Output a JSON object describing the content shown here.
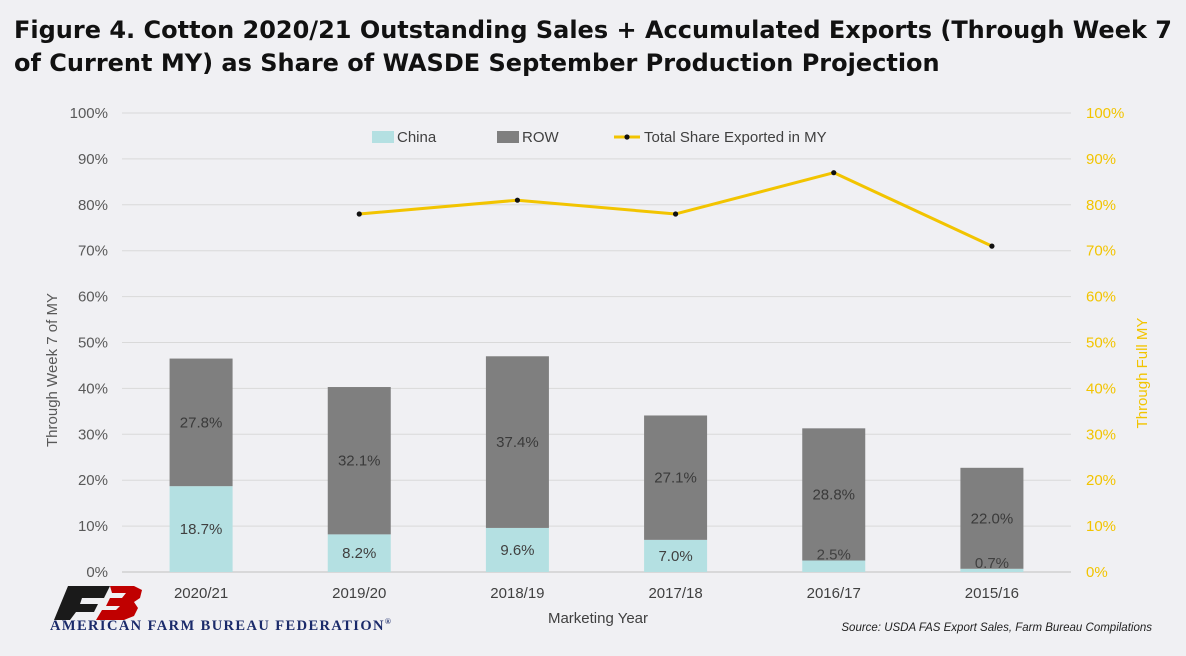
{
  "title": "Figure 4. Cotton 2020/21 Outstanding Sales + Accumulated Exports (Through Week 7 of Current MY) as Share of WASDE September Production Projection",
  "source": "Source: USDA FAS Export Sales, Farm Bureau Compilations",
  "logo_text": "AMERICAN FARM BUREAU FEDERATION",
  "logo_mark": "®",
  "colors": {
    "china": "#b4e0e2",
    "row": "#7f7f7f",
    "line": "#f2c400",
    "marker": "#111111"
  },
  "chart_data": {
    "type": "bar",
    "stacked": true,
    "categories": [
      "2020/21",
      "2019/20",
      "2018/19",
      "2017/18",
      "2016/17",
      "2015/16"
    ],
    "series": [
      {
        "name": "China",
        "values": [
          18.7,
          8.2,
          9.6,
          7.0,
          2.5,
          0.7
        ],
        "labels": [
          "18.7%",
          "8.2%",
          "9.6%",
          "7.0%",
          "2.5%",
          "0.7%"
        ]
      },
      {
        "name": "ROW",
        "values": [
          27.8,
          32.1,
          37.4,
          27.1,
          28.8,
          22.0
        ],
        "labels": [
          "27.8%",
          "32.1%",
          "37.4%",
          "27.1%",
          "28.8%",
          "22.0%"
        ]
      }
    ],
    "line_series": {
      "name": "Total Share Exported in MY",
      "axis": "right",
      "values": [
        null,
        78,
        81,
        78,
        87,
        71
      ]
    },
    "xlabel": "Marketing Year",
    "ylabel": "Through Week 7 of MY",
    "y2label": "Through Full MY",
    "ylim": [
      0,
      100
    ],
    "y2lim": [
      0,
      100
    ],
    "yticks": [
      "0%",
      "10%",
      "20%",
      "30%",
      "40%",
      "50%",
      "60%",
      "70%",
      "80%",
      "90%",
      "100%"
    ],
    "y2ticks": [
      "0%",
      "10%",
      "20%",
      "30%",
      "40%",
      "50%",
      "60%",
      "70%",
      "80%",
      "90%",
      "100%"
    ],
    "grid": true,
    "legend_position": "top"
  }
}
